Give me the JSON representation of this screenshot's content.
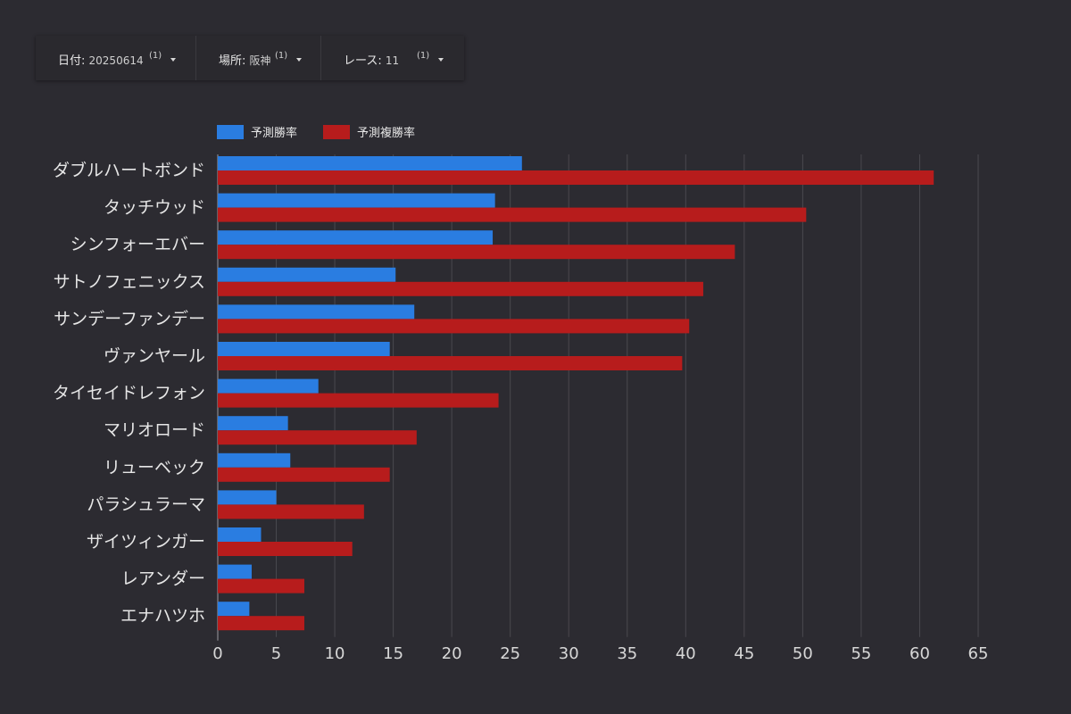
{
  "filters": [
    {
      "label": "日付",
      "value": "20250614",
      "count": "(1)"
    },
    {
      "label": "場所",
      "value": "阪神",
      "count": "(1)"
    },
    {
      "label": "レース",
      "value": "11",
      "count": "(1)"
    }
  ],
  "colors": {
    "background": "#2c2b31",
    "win_rate": "#2a7de1",
    "place_rate": "#b71c1c",
    "grid": "#4a494f",
    "text": "#e6e6e6"
  },
  "chart_data": {
    "type": "bar",
    "orientation": "horizontal",
    "categories": [
      "ダブルハートボンド",
      "タッチウッド",
      "シンフォーエバー",
      "サトノフェニックス",
      "サンデーファンデー",
      "ヴァンヤール",
      "タイセイドレフォン",
      "マリオロード",
      "リューベック",
      "パラシュラーマ",
      "ザイツィンガー",
      "レアンダー",
      "エナハツホ"
    ],
    "series": [
      {
        "name": "予測勝率",
        "values": [
          26.0,
          23.7,
          23.5,
          15.2,
          16.8,
          14.7,
          8.6,
          6.0,
          6.2,
          5.0,
          3.7,
          2.9,
          2.7
        ]
      },
      {
        "name": "予測複勝率",
        "values": [
          61.2,
          50.3,
          44.2,
          41.5,
          40.3,
          39.7,
          24.0,
          17.0,
          14.7,
          12.5,
          11.5,
          7.4,
          7.4
        ]
      }
    ],
    "xlim": [
      0,
      65
    ],
    "xticks": [
      0,
      5,
      10,
      15,
      20,
      25,
      30,
      35,
      40,
      45,
      50,
      55,
      60,
      65
    ],
    "grid": true,
    "legend": "top-left",
    "title": "",
    "xlabel": "",
    "ylabel": ""
  }
}
